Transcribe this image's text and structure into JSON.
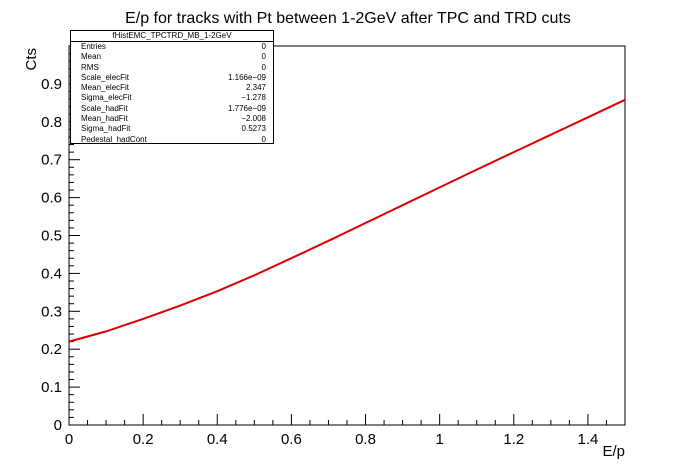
{
  "chart_data": {
    "type": "line",
    "title": "E/p for tracks with Pt between 1-2GeV after TPC and TRD cuts",
    "xlabel": "E/p",
    "ylabel": "Cts",
    "xlim": [
      0,
      1.5
    ],
    "ylim": [
      0,
      1.0
    ],
    "x_ticks": [
      0,
      0.2,
      0.4,
      0.6,
      0.8,
      1,
      1.2,
      1.4
    ],
    "x_tick_labels": [
      "0",
      "0.2",
      "0.4",
      "0.6",
      "0.8",
      "1",
      "1.2",
      "1.4"
    ],
    "y_ticks": [
      0,
      0.1,
      0.2,
      0.3,
      0.4,
      0.5,
      0.6,
      0.7,
      0.8,
      0.9
    ],
    "y_tick_labels": [
      "0",
      "0.1",
      "0.2",
      "0.3",
      "0.4",
      "0.5",
      "0.6",
      "0.7",
      "0.8",
      "0.9"
    ],
    "grid": false,
    "line_color": "#dd0000",
    "series": [
      {
        "x": [
          0,
          0.1,
          0.2,
          0.3,
          0.4,
          0.5,
          0.6,
          0.7,
          0.8,
          0.9,
          1.0,
          1.1,
          1.2,
          1.3,
          1.4,
          1.5
        ],
        "values": [
          0.22,
          0.247,
          0.28,
          0.315,
          0.353,
          0.395,
          0.44,
          0.486,
          0.533,
          0.58,
          0.627,
          0.674,
          0.72,
          0.766,
          0.812,
          0.858
        ]
      }
    ]
  },
  "stats": {
    "title": "fHistEMC_TPCTRD_MB_1-2GeV",
    "rows": [
      {
        "label": "Entries",
        "value": "0"
      },
      {
        "label": "Mean",
        "value": "0"
      },
      {
        "label": "RMS",
        "value": "0"
      },
      {
        "label": "Scale_elecFit",
        "value": "1.166e−09"
      },
      {
        "label": "Mean_elecFit",
        "value": "2.347"
      },
      {
        "label": "Sigma_elecFit",
        "value": "−1.278"
      },
      {
        "label": "Scale_hadFit",
        "value": "1.776e−09"
      },
      {
        "label": "Mean_hadFit",
        "value": "−2.008"
      },
      {
        "label": "Sigma_hadFit",
        "value": "0.5273"
      },
      {
        "label": "Pedestal_hadCont",
        "value": "0"
      }
    ]
  }
}
